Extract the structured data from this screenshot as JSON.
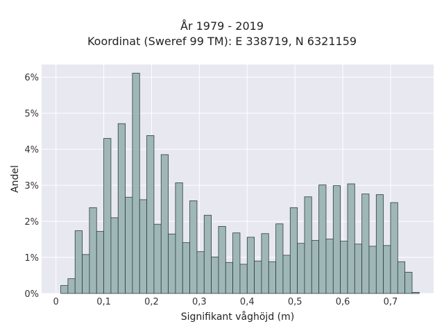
{
  "chart_data": {
    "type": "bar",
    "title_line1": "År 1979 - 2019",
    "title_line2": "Koordinat (Sweref 99 TM): E 338719, N 6321159",
    "xlabel": "Signifikant våghöjd (m)",
    "ylabel": "Andel",
    "xlim": [
      -0.03,
      0.79
    ],
    "ylim": [
      0,
      0.0635
    ],
    "x_ticks": [
      0,
      0.1,
      0.2,
      0.3,
      0.4,
      0.5,
      0.6,
      0.7
    ],
    "x_tick_labels": [
      "0",
      "0,1",
      "0,2",
      "0,3",
      "0,4",
      "0,5",
      "0,6",
      "0,7"
    ],
    "y_ticks": [
      0,
      0.01,
      0.02,
      0.03,
      0.04,
      0.05,
      0.06
    ],
    "y_tick_labels": [
      "0%",
      "1%",
      "2%",
      "3%",
      "4%",
      "5%",
      "6%"
    ],
    "bin_width": 0.015,
    "bin_start": 0.01,
    "values": [
      0.0022,
      0.0041,
      0.0174,
      0.0108,
      0.0238,
      0.0172,
      0.043,
      0.021,
      0.0471,
      0.0267,
      0.0611,
      0.026,
      0.0438,
      0.0192,
      0.0385,
      0.0165,
      0.0307,
      0.0141,
      0.0257,
      0.0116,
      0.0217,
      0.0101,
      0.0186,
      0.0086,
      0.0168,
      0.0081,
      0.0156,
      0.009,
      0.0166,
      0.0088,
      0.0193,
      0.0106,
      0.0238,
      0.0139,
      0.0268,
      0.0147,
      0.0301,
      0.0151,
      0.0299,
      0.0145,
      0.0304,
      0.0137,
      0.0276,
      0.0131,
      0.0274,
      0.0133,
      0.0252,
      0.0088,
      0.0059,
      0.0003
    ],
    "bar_color": "#9fb8b7",
    "bar_edge_color": "#2f3d3d",
    "plot_background": "#e8e8f0",
    "grid": true,
    "grid_color": "#ffffff"
  }
}
